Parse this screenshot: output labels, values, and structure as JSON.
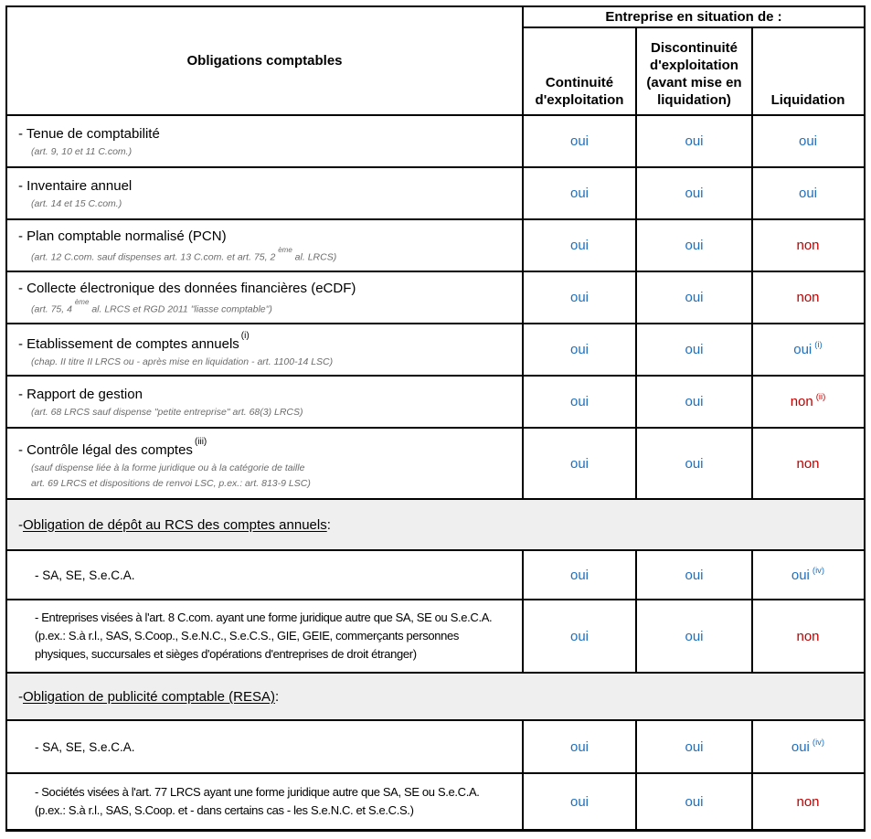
{
  "colors": {
    "yes_blue": "#1e6fc0",
    "no_red": "#c00000",
    "section_bg": "#efefef",
    "subtext_gray": "#6b6b6b",
    "border": "#000000"
  },
  "header": {
    "obligations_title": "Obligations comptables",
    "group_title": "Entreprise en situation de :",
    "col_continuity": "Continuité\nd'exploitation",
    "col_discontinuity": "Discontinuité\nd'exploitation\n(avant mise en\nliquidation)",
    "col_liquidation": "Liquidation"
  },
  "rows": [
    {
      "title": "- Tenue de comptabilité",
      "sub1a": "(art. 9, 10 et 11 C.com.)",
      "c1": "oui",
      "c2": "oui",
      "c3": "oui",
      "c3_kind": "yes"
    },
    {
      "title": "- Inventaire annuel",
      "sub1a": "(art. 14 et 15 C.com.)",
      "c1": "oui",
      "c2": "oui",
      "c3": "oui",
      "c3_kind": "yes"
    },
    {
      "title": "- Plan comptable normalisé (PCN)",
      "sub1a": "(art. 12 C.com. sauf dispenses art. 13 C.com. et art. 75, 2 ",
      "sub1sup": "ème",
      "sub1b": " al. LRCS)",
      "c1": "oui",
      "c2": "oui",
      "c3": "non",
      "c3_kind": "no"
    },
    {
      "title": "- Collecte électronique des données financières (eCDF)",
      "sub1a": "(art. 75, 4 ",
      "sub1sup": "ème",
      "sub1b": " al. LRCS et RGD 2011 \"liasse comptable\")",
      "c1": "oui",
      "c2": "oui",
      "c3": "non",
      "c3_kind": "no"
    },
    {
      "title": "- Etablissement de comptes annuels",
      "title_sup": "(i)",
      "sub1a": "(chap. II titre II LRCS ou - après mise en liquidation - art. 1100-14 LSC)",
      "c1": "oui",
      "c2": "oui",
      "c3": "oui",
      "c3_sup": "(i)",
      "c3_kind": "yes"
    },
    {
      "title": "- Rapport de gestion",
      "sub1a": "(art. 68 LRCS sauf dispense \"petite entreprise\" art. 68(3) LRCS)",
      "c1": "oui",
      "c2": "oui",
      "c3": "non",
      "c3_sup": "(ii)",
      "c3_kind": "no"
    },
    {
      "title": "- Contrôle légal des comptes",
      "title_sup": "(iii)",
      "sub1a": "(sauf dispense liée à la forme juridique ou à la catégorie de taille",
      "sub2": "art. 69  LRCS et dispositions de renvoi LSC, p.ex.: art. 813-9 LSC)",
      "c1": "oui",
      "c2": "oui",
      "c3": "non",
      "c3_kind": "no"
    }
  ],
  "sections": {
    "depot": {
      "dash": "- ",
      "label": "Obligation de dépôt au RCS des comptes annuels",
      "colon": ":"
    },
    "resa": {
      "dash": "- ",
      "label": "Obligation de publicité comptable (RESA)",
      "colon": ":"
    }
  },
  "subrows": [
    {
      "text": "- SA, SE, S.e.C.A.",
      "c1": "oui",
      "c2": "oui",
      "c3": "oui",
      "c3_sup": "(iv)",
      "c3_kind": "yes"
    },
    {
      "text": "- Entreprises visées à l'art. 8 C.com. ayant une forme juridique autre que SA, SE ou S.e.C.A.\n(p.ex.: S.à r.l., SAS, S.Coop., S.e.N.C., S.e.C.S., GIE, GEIE, commerçants personnes\nphysiques, succursales et sièges d'opérations d'entreprises de droit étranger)",
      "c1": "oui",
      "c2": "oui",
      "c3": "non",
      "c3_kind": "no"
    },
    {
      "text": "- SA, SE, S.e.C.A.",
      "c1": "oui",
      "c2": "oui",
      "c3": "oui",
      "c3_sup": "(iv)",
      "c3_kind": "yes"
    },
    {
      "text": "- Sociétés visées à l'art. 77 LRCS ayant une forme juridique autre que SA, SE ou S.e.C.A.\n(p.ex.: S.à r.l., SAS, S.Coop. et - dans certains cas - les S.e.N.C. et S.e.C.S.)",
      "c1": "oui",
      "c2": "oui",
      "c3": "non",
      "c3_kind": "no"
    }
  ]
}
